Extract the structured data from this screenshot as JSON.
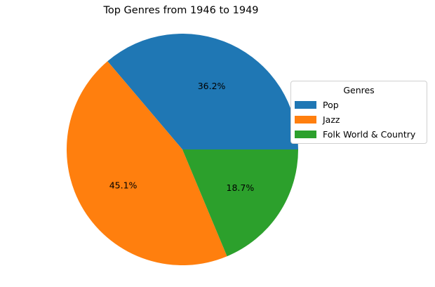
{
  "chart_data": {
    "type": "pie",
    "title": "Top Genres from 1946 to 1949",
    "legend_title": "Genres",
    "legend_placement": "right",
    "start_angle": 0,
    "direction": "counterclockwise",
    "slices": [
      {
        "label": "Pop",
        "value": 36.2,
        "pct_label": "36.2%",
        "color": "#1f77b4"
      },
      {
        "label": "Jazz",
        "value": 45.1,
        "pct_label": "45.1%",
        "color": "#ff7f0e"
      },
      {
        "label": "Folk World & Country",
        "value": 18.7,
        "pct_label": "18.7%",
        "color": "#2ca02c"
      }
    ]
  }
}
